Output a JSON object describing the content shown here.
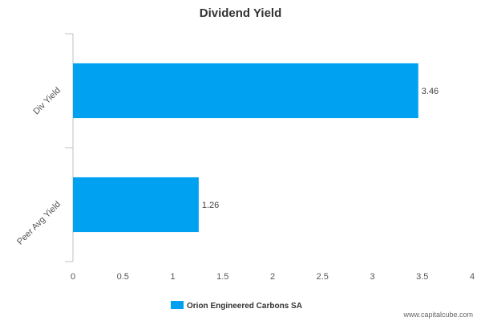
{
  "chart_data": {
    "type": "bar",
    "orientation": "horizontal",
    "title": "Dividend Yield",
    "categories": [
      "Div Yield",
      "Peer Avg Yield"
    ],
    "series": [
      {
        "name": "Orion Engineered Carbons SA",
        "values": [
          3.46,
          1.26
        ],
        "color": "#00a1f1"
      }
    ],
    "data_labels": [
      "3.46",
      "1.26"
    ],
    "xlim": [
      0,
      4
    ],
    "x_ticks": [
      0,
      0.5,
      1,
      1.5,
      2,
      2.5,
      3,
      3.5,
      4
    ],
    "x_tick_labels": [
      "0",
      "0.5",
      "1",
      "1.5",
      "2",
      "2.5",
      "3",
      "3.5",
      "4"
    ],
    "grid": false,
    "legend_position": "bottom-center"
  },
  "watermark": "www.capitalcube.com"
}
